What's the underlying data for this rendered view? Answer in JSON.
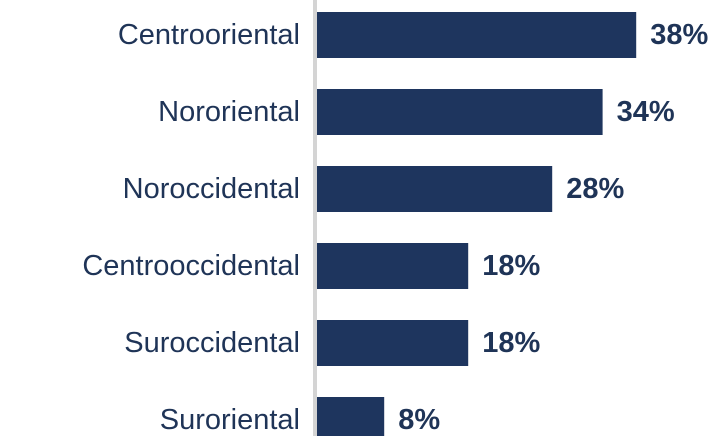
{
  "colors": {
    "bar": "#1e355e",
    "text": "#1f3457",
    "axis": "#d4d4d4"
  },
  "chart_data": {
    "type": "bar",
    "orientation": "horizontal",
    "categories": [
      "Centrooriental",
      "Nororiental",
      "Noroccidental",
      "Centrooccidental",
      "Suroccidental",
      "Suroriental"
    ],
    "values": [
      38,
      34,
      28,
      18,
      18,
      8
    ],
    "value_labels": [
      "38%",
      "34%",
      "28%",
      "18%",
      "18%",
      "8%"
    ],
    "value_suffix": "%",
    "grid": false,
    "legend": "none",
    "xlim": [
      0,
      40
    ]
  }
}
